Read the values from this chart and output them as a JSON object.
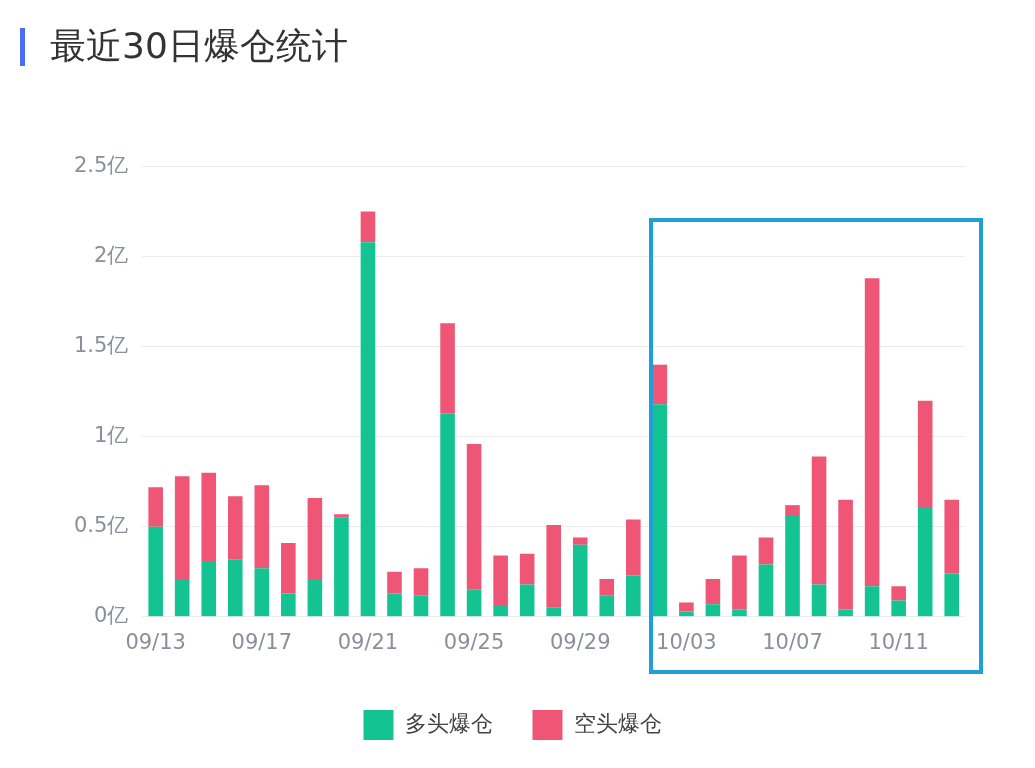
{
  "chart_data": {
    "type": "bar",
    "title": "最近30日爆仓统计",
    "stacked": true,
    "grid": "y",
    "legend": "bottom",
    "categories": [
      "09/13",
      null,
      null,
      null,
      "09/17",
      null,
      null,
      null,
      "09/21",
      null,
      null,
      null,
      "09/25",
      null,
      null,
      null,
      "09/29",
      null,
      null,
      null,
      "10/03",
      null,
      null,
      null,
      "10/07",
      null,
      null,
      null,
      "10/11",
      null,
      null
    ],
    "ylim": [
      0,
      2.5
    ],
    "yticks": [
      {
        "value": 0,
        "label": "0亿"
      },
      {
        "value": 0.5,
        "label": "0.5亿"
      },
      {
        "value": 1,
        "label": "1亿"
      },
      {
        "value": 1.5,
        "label": "1.5亿"
      },
      {
        "value": 2,
        "label": "2亿"
      },
      {
        "value": 2.5,
        "label": "2.5亿"
      }
    ],
    "series": [
      {
        "name": "多头爆仓",
        "color": "#14c392",
        "values": [
          0.5,
          0.21,
          0.31,
          0.32,
          0.27,
          0.13,
          0.21,
          0.55,
          2.08,
          0.13,
          0.12,
          1.13,
          0.15,
          0.06,
          0.18,
          0.05,
          0.4,
          0.12,
          0.23,
          1.18,
          0.03,
          0.07,
          0.04,
          0.29,
          0.56,
          0.18,
          0.04,
          0.17,
          0.09,
          0.61,
          0.24
        ]
      },
      {
        "name": "空头爆仓",
        "color": "#ef5574",
        "values": [
          0.22,
          0.57,
          0.49,
          0.35,
          0.46,
          0.28,
          0.45,
          0.02,
          0.17,
          0.12,
          0.15,
          0.5,
          0.81,
          0.28,
          0.17,
          0.46,
          0.04,
          0.09,
          0.31,
          0.22,
          0.05,
          0.14,
          0.3,
          0.15,
          0.06,
          0.71,
          0.61,
          1.71,
          0.08,
          0.59,
          0.41
        ]
      }
    ]
  }
}
